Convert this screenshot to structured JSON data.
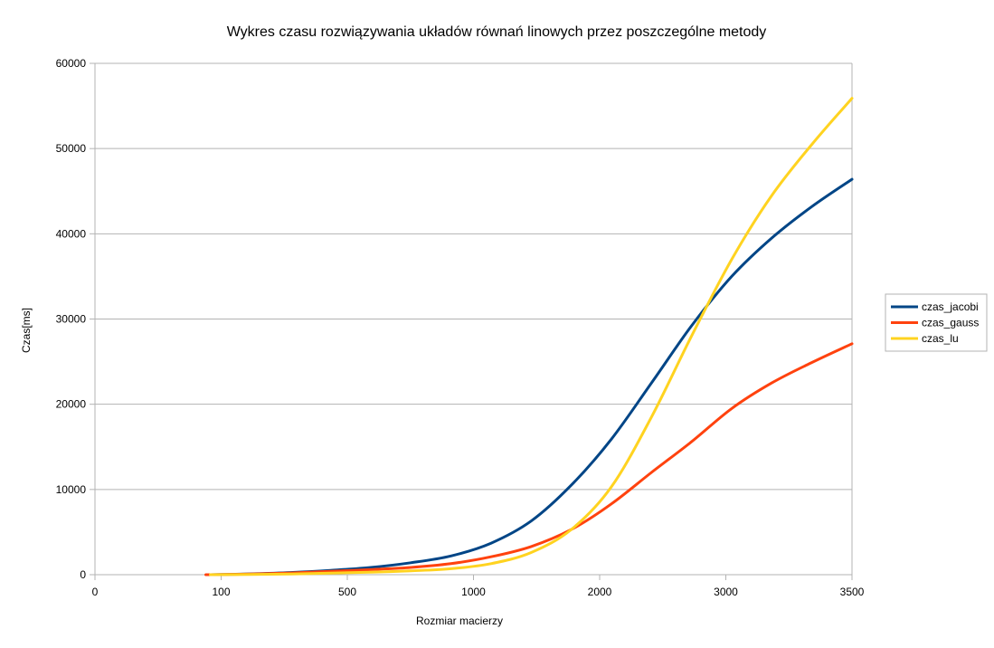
{
  "chart_data": {
    "type": "line",
    "title": "Wykres czasu rozwiązywania układów równań linowych przez poszczególne metody",
    "xlabel": "Rozmiar macierzy",
    "ylabel": "Czas[ms]",
    "x_ticks": [
      "0",
      "100",
      "500",
      "1000",
      "2000",
      "3000",
      "3500"
    ],
    "y_ticks": [
      "0",
      "10000",
      "20000",
      "30000",
      "40000",
      "50000",
      "60000"
    ],
    "ylim": [
      0,
      60000
    ],
    "grid": "horizontal",
    "legend_position": "right",
    "series": [
      {
        "name": "czas_jacobi",
        "color": "#004586",
        "points": [
          [
            1,
            0
          ],
          [
            2,
            100
          ],
          [
            3,
            250
          ],
          [
            4,
            500
          ],
          [
            5,
            850
          ],
          [
            6,
            1400
          ],
          [
            7,
            2200
          ],
          [
            8,
            3700
          ],
          [
            9,
            6300
          ],
          [
            10,
            10500
          ],
          [
            11,
            15900
          ],
          [
            12,
            22500
          ],
          [
            13,
            29200
          ],
          [
            14,
            35000
          ],
          [
            15,
            39500
          ],
          [
            16,
            43200
          ],
          [
            17,
            46400
          ]
        ]
      },
      {
        "name": "czas_gauss",
        "color": "#ff420e",
        "points": [
          [
            0.9,
            0
          ],
          [
            1,
            0
          ],
          [
            2,
            80
          ],
          [
            3,
            200
          ],
          [
            4,
            400
          ],
          [
            5,
            600
          ],
          [
            6,
            850
          ],
          [
            7,
            1300
          ],
          [
            8,
            2100
          ],
          [
            9,
            3300
          ],
          [
            10,
            5300
          ],
          [
            11,
            8300
          ],
          [
            12,
            12000
          ],
          [
            13,
            15600
          ],
          [
            14,
            19500
          ],
          [
            15,
            22500
          ],
          [
            16,
            24900
          ],
          [
            17,
            27100
          ]
        ]
      },
      {
        "name": "czas_lu",
        "color": "#ffd320",
        "points": [
          [
            1,
            0
          ],
          [
            2,
            20
          ],
          [
            3,
            80
          ],
          [
            4,
            180
          ],
          [
            5,
            300
          ],
          [
            6,
            450
          ],
          [
            7,
            700
          ],
          [
            8,
            1300
          ],
          [
            9,
            2600
          ],
          [
            10,
            5300
          ],
          [
            11,
            10300
          ],
          [
            12,
            18500
          ],
          [
            13,
            28000
          ],
          [
            14,
            37000
          ],
          [
            15,
            44500
          ],
          [
            16,
            50500
          ],
          [
            17,
            55900
          ]
        ]
      }
    ]
  }
}
